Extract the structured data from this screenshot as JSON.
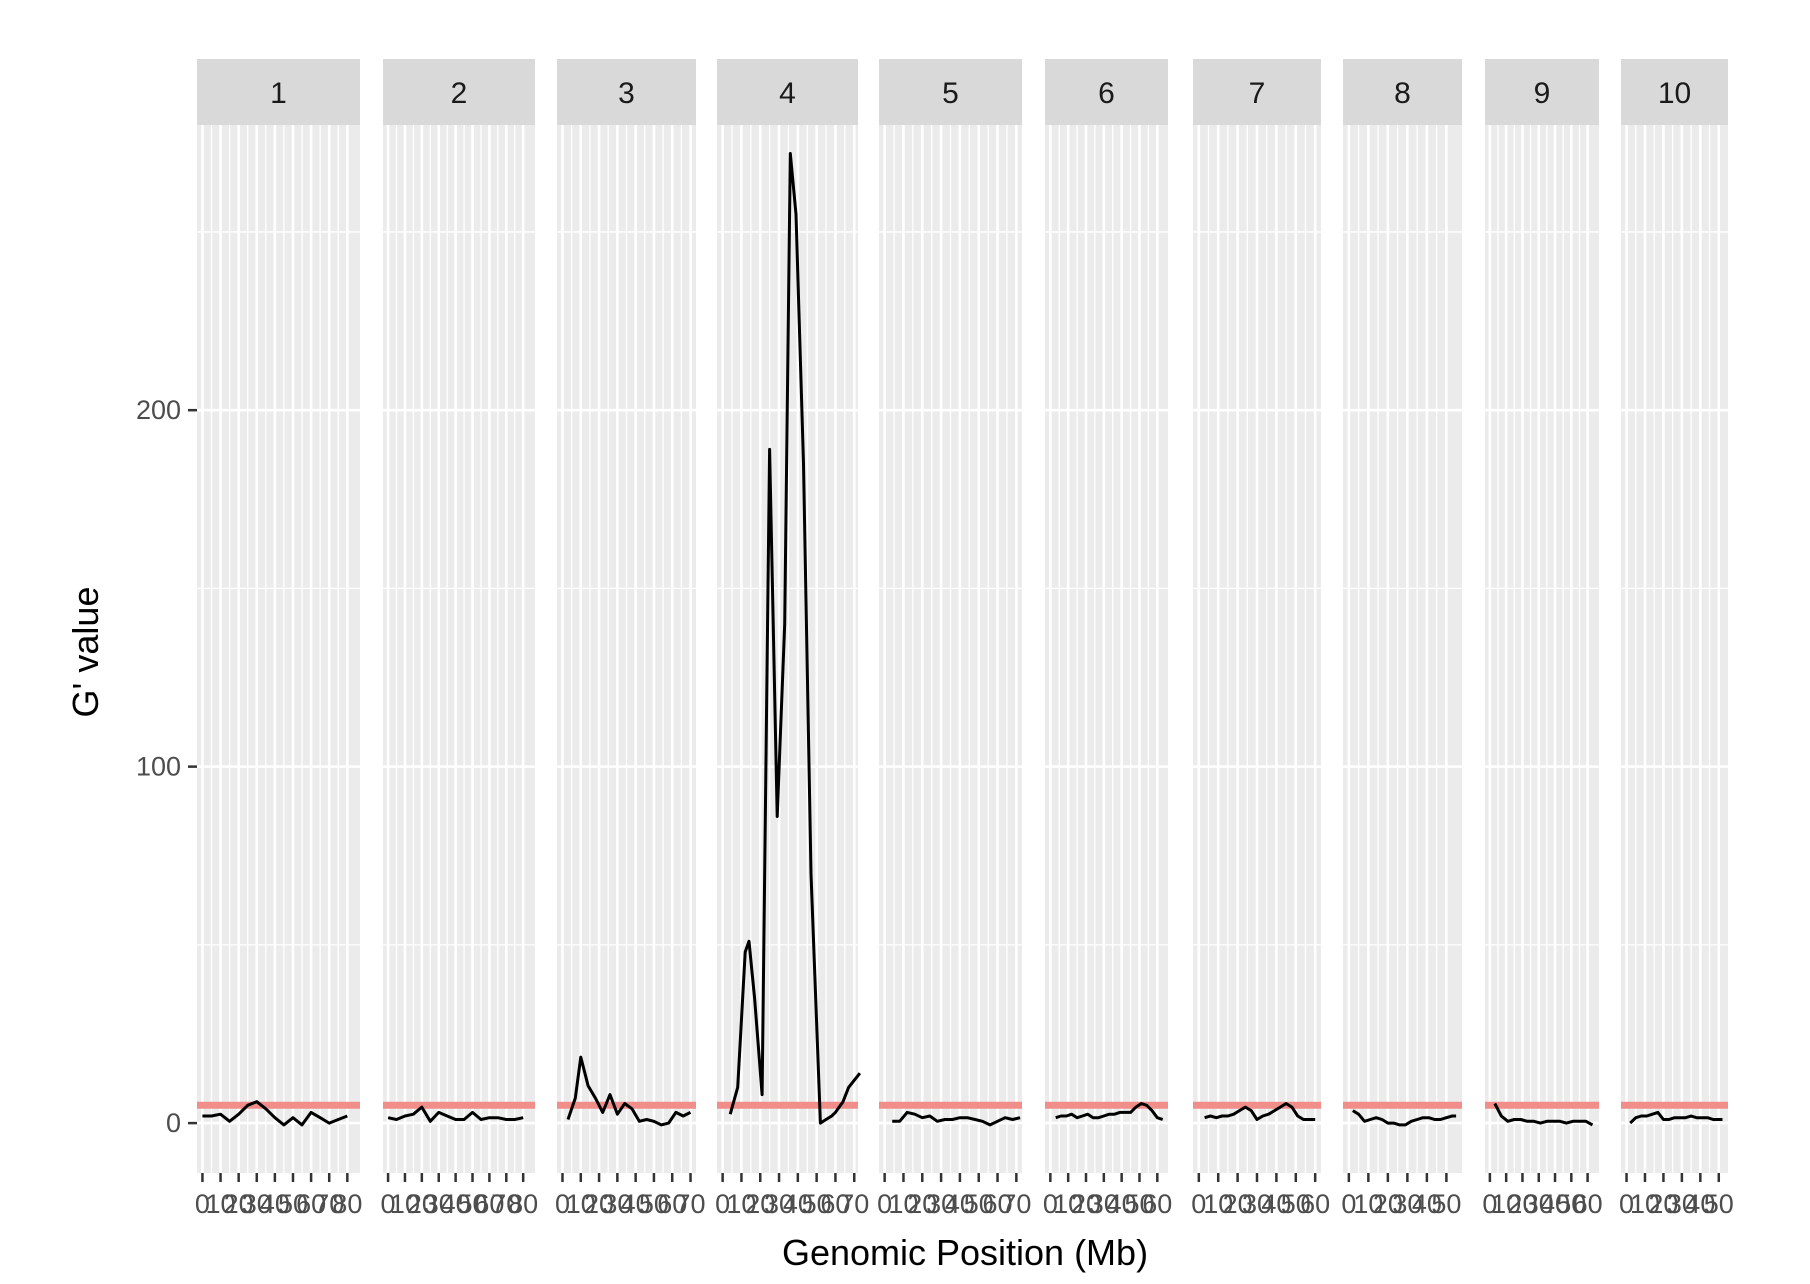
{
  "chart_data": {
    "type": "line",
    "layout": "faceted",
    "xlabel": "Genomic Position (Mb)",
    "ylabel": "G' value",
    "ylim": [
      -14,
      280
    ],
    "y_ticks": [
      0,
      100,
      200
    ],
    "threshold": 5,
    "grid": "on",
    "colors": {
      "panel_bg": "#ebebeb",
      "strip_bg": "#d9d9d9",
      "grid": "#ffffff",
      "line": "#000000",
      "threshold": "#f28e8a",
      "tick_text": "#4d4d4d"
    },
    "facets": [
      {
        "label": "1",
        "xlim": [
          -3,
          87
        ],
        "xticks": [
          0,
          10,
          20,
          30,
          40,
          50,
          60,
          70,
          80
        ],
        "tick_labels": [
          "0",
          "10",
          "20",
          "30",
          "40",
          "50",
          "60",
          "70",
          "80"
        ],
        "x": [
          0,
          5,
          10,
          15,
          20,
          25,
          30,
          35,
          40,
          45,
          50,
          55,
          60,
          65,
          70,
          75,
          80
        ],
        "y": [
          2,
          2,
          2.5,
          0.5,
          2.5,
          5,
          6,
          4,
          1.5,
          -0.5,
          1.5,
          -0.5,
          3,
          1.5,
          0,
          1,
          2
        ]
      },
      {
        "label": "2",
        "xlim": [
          -3,
          87
        ],
        "xticks": [
          0,
          10,
          20,
          30,
          40,
          50,
          60,
          70,
          80
        ],
        "tick_labels": [
          "0",
          "10",
          "20",
          "30",
          "40",
          "50",
          "60",
          "70",
          "80"
        ],
        "x": [
          0,
          5,
          10,
          15,
          20,
          25,
          30,
          35,
          40,
          45,
          50,
          55,
          60,
          65,
          70,
          75,
          80
        ],
        "y": [
          1.5,
          1,
          2,
          2.5,
          4.5,
          0.5,
          3,
          2,
          1,
          1,
          3,
          1,
          1.5,
          1.5,
          1,
          1,
          1.5
        ]
      },
      {
        "label": "3",
        "xlim": [
          -3,
          73
        ],
        "xticks": [
          0,
          10,
          20,
          30,
          40,
          50,
          60,
          70
        ],
        "tick_labels": [
          "0",
          "10",
          "20",
          "30",
          "40",
          "50",
          "60",
          "70"
        ],
        "x": [
          3,
          7,
          10,
          14,
          18,
          22,
          26,
          30,
          34,
          38,
          42,
          46,
          50,
          54,
          58,
          62,
          66,
          70
        ],
        "y": [
          1,
          7,
          18.5,
          10.5,
          7,
          3,
          8,
          2.5,
          5.5,
          4,
          0.5,
          1,
          0.5,
          -0.5,
          0,
          3,
          2,
          3
        ]
      },
      {
        "label": "4",
        "xlim": [
          -3,
          72
        ],
        "xticks": [
          0,
          10,
          20,
          30,
          40,
          50,
          60,
          70
        ],
        "tick_labels": [
          "0",
          "10",
          "20",
          "30",
          "40",
          "50",
          "60",
          "70"
        ],
        "x": [
          4,
          8,
          12,
          14,
          17,
          21,
          25,
          29,
          33,
          36,
          39,
          43,
          47,
          52,
          55,
          58,
          60,
          64,
          67,
          70,
          73
        ],
        "y": [
          2.5,
          10,
          48,
          51,
          35,
          8,
          189,
          86,
          140,
          272,
          255,
          185,
          70,
          0,
          1,
          2,
          3,
          6,
          10,
          12,
          14
        ]
      },
      {
        "label": "5",
        "xlim": [
          -3,
          73
        ],
        "xticks": [
          0,
          10,
          20,
          30,
          40,
          50,
          60,
          70
        ],
        "tick_labels": [
          "0",
          "10",
          "20",
          "30",
          "40",
          "50",
          "60",
          "70"
        ],
        "x": [
          4,
          8,
          12,
          16,
          20,
          24,
          28,
          32,
          36,
          40,
          44,
          48,
          52,
          56,
          60,
          64,
          68,
          72
        ],
        "y": [
          0.5,
          0.5,
          3,
          2.5,
          1.5,
          2,
          0.5,
          1,
          1,
          1.5,
          1.5,
          1,
          0.5,
          -0.5,
          0.5,
          1.5,
          1,
          1.5
        ]
      },
      {
        "label": "6",
        "xlim": [
          -3,
          66
        ],
        "xticks": [
          0,
          10,
          20,
          30,
          40,
          50,
          60
        ],
        "tick_labels": [
          "0",
          "10",
          "20",
          "30",
          "40",
          "50",
          "60"
        ],
        "x": [
          3,
          6,
          9,
          12,
          15,
          18,
          21,
          24,
          27,
          30,
          33,
          36,
          39,
          42,
          45,
          48,
          51,
          54,
          57,
          60,
          63
        ],
        "y": [
          1.5,
          2,
          2,
          2.5,
          1.5,
          2,
          2.5,
          1.5,
          1.5,
          2,
          2.5,
          2.5,
          3,
          3,
          3,
          4.5,
          5.5,
          5,
          3.5,
          1.5,
          1
        ]
      },
      {
        "label": "7",
        "xlim": [
          -3,
          63
        ],
        "xticks": [
          0,
          10,
          20,
          30,
          40,
          50,
          60
        ],
        "tick_labels": [
          "0",
          "10",
          "20",
          "30",
          "40",
          "50",
          "60"
        ],
        "x": [
          3,
          6,
          9,
          12,
          15,
          18,
          21,
          24,
          27,
          30,
          33,
          36,
          39,
          42,
          45,
          48,
          51,
          54,
          57,
          60
        ],
        "y": [
          1.5,
          2,
          1.5,
          2,
          2,
          2.5,
          3.5,
          4.5,
          3.5,
          1,
          2,
          2.5,
          3.5,
          4.5,
          5.5,
          4.5,
          2,
          1,
          1,
          1
        ]
      },
      {
        "label": "8",
        "xlim": [
          -3,
          58
        ],
        "xticks": [
          0,
          10,
          20,
          30,
          40,
          50
        ],
        "tick_labels": [
          "0",
          "10",
          "20",
          "30",
          "40",
          "50"
        ],
        "x": [
          2,
          5,
          8,
          11,
          14,
          17,
          20,
          23,
          26,
          29,
          32,
          35,
          38,
          41,
          44,
          47,
          50,
          53,
          55
        ],
        "y": [
          3.5,
          2.5,
          0.5,
          1,
          1.5,
          1,
          0,
          0,
          -0.5,
          -0.5,
          0.5,
          1,
          1.5,
          1.5,
          1,
          1,
          1.5,
          2,
          2
        ]
      },
      {
        "label": "9",
        "xlim": [
          -3,
          67
        ],
        "xticks": [
          0,
          10,
          20,
          30,
          40,
          50,
          60
        ],
        "tick_labels": [
          "0",
          "10",
          "20",
          "30",
          "40",
          "50",
          "60"
        ],
        "x": [
          3,
          7,
          11,
          15,
          19,
          23,
          27,
          31,
          35,
          39,
          43,
          47,
          51,
          55,
          59,
          63
        ],
        "y": [
          5.5,
          2,
          0.5,
          1,
          1,
          0.5,
          0.5,
          0,
          0.5,
          0.5,
          0.5,
          0,
          0.5,
          0.5,
          0.5,
          -0.5
        ]
      },
      {
        "label": "10",
        "xlim": [
          -3,
          55
        ],
        "xticks": [
          0,
          10,
          20,
          30,
          40,
          50
        ],
        "tick_labels": [
          "0",
          "10",
          "20",
          "30",
          "40",
          "50"
        ],
        "x": [
          2,
          5,
          8,
          11,
          14,
          17,
          20,
          23,
          26,
          29,
          32,
          35,
          38,
          41,
          44,
          47,
          50,
          52
        ],
        "y": [
          0,
          1.5,
          2,
          2,
          2.5,
          3,
          1,
          1,
          1.5,
          1.5,
          1.5,
          2,
          1.5,
          1.5,
          1.5,
          1,
          1,
          1
        ]
      }
    ]
  }
}
